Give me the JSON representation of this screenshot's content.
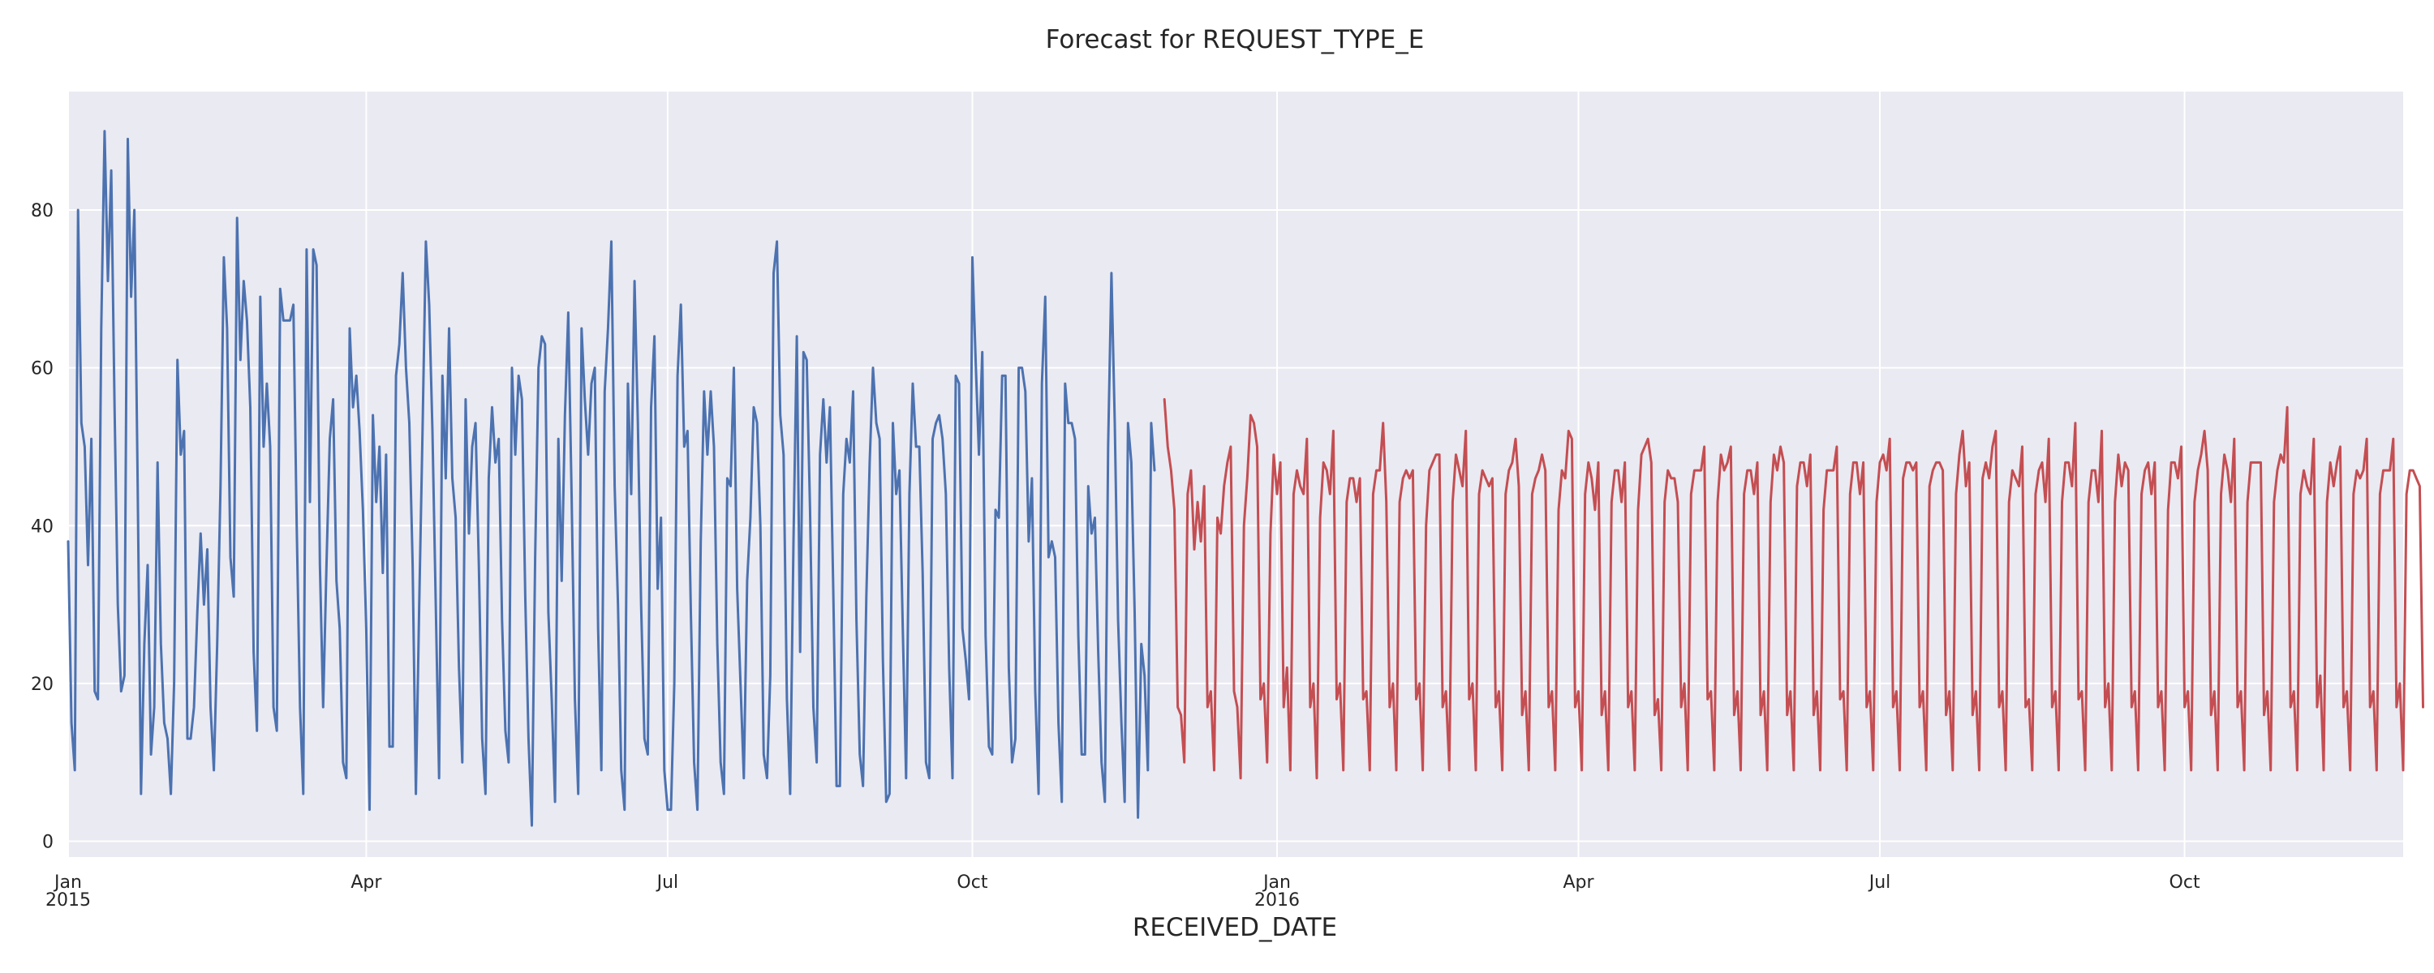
{
  "chart_data": {
    "type": "line",
    "title": "Forecast for REQUEST_TYPE_E",
    "xlabel": "RECEIVED_DATE",
    "ylabel": "",
    "x_range": [
      "2015-01-01",
      "2016-12-06"
    ],
    "ylim": [
      -2,
      95
    ],
    "yticks": [
      0,
      20,
      40,
      60,
      80
    ],
    "xticks": [
      {
        "date": "2015-01-01",
        "label": "Jan",
        "sublabel": "2015"
      },
      {
        "date": "2015-04-01",
        "label": "Apr",
        "sublabel": ""
      },
      {
        "date": "2015-07-01",
        "label": "Jul",
        "sublabel": ""
      },
      {
        "date": "2015-10-01",
        "label": "Oct",
        "sublabel": ""
      },
      {
        "date": "2016-01-01",
        "label": "Jan",
        "sublabel": "2016"
      },
      {
        "date": "2016-04-01",
        "label": "Apr",
        "sublabel": ""
      },
      {
        "date": "2016-07-01",
        "label": "Jul",
        "sublabel": ""
      },
      {
        "date": "2016-10-01",
        "label": "Oct",
        "sublabel": ""
      }
    ],
    "grid": true,
    "background": "#EAEAF2",
    "series": [
      {
        "color": "#4C72B0",
        "x_start": "2015-01-01",
        "x_step_days": 1,
        "values": [
          38,
          15,
          9,
          80,
          53,
          50,
          35,
          51,
          19,
          18,
          65,
          90,
          71,
          85,
          55,
          30,
          19,
          21,
          89,
          69,
          80,
          45,
          6,
          25,
          35,
          11,
          17,
          48,
          25,
          15,
          13,
          6,
          20,
          61,
          49,
          52,
          13,
          13,
          17,
          29,
          39,
          30,
          37,
          17,
          9,
          25,
          45,
          74,
          65,
          36,
          31,
          79,
          61,
          71,
          66,
          55,
          24,
          14,
          69,
          50,
          58,
          50,
          17,
          14,
          70,
          66,
          66,
          66,
          68,
          40,
          17,
          6,
          75,
          43,
          75,
          73,
          35,
          17,
          35,
          51,
          56,
          33,
          27,
          10,
          8,
          65,
          55,
          59,
          52,
          42,
          27,
          4,
          54,
          43,
          50,
          34,
          49,
          12,
          12,
          59,
          63,
          72,
          60,
          53,
          35,
          6,
          30,
          52,
          76,
          68,
          52,
          30,
          8,
          59,
          46,
          65,
          46,
          41,
          22,
          10,
          56,
          39,
          50,
          53,
          35,
          13,
          6,
          46,
          55,
          48,
          51,
          28,
          14,
          10,
          60,
          49,
          59,
          56,
          31,
          13,
          2,
          36,
          60,
          64,
          63,
          29,
          18,
          5,
          51,
          33,
          54,
          67,
          44,
          18,
          6,
          65,
          56,
          49,
          58,
          60,
          27,
          9,
          57,
          65,
          76,
          45,
          30,
          9,
          4,
          58,
          44,
          71,
          53,
          30,
          13,
          11,
          55,
          64,
          32,
          41,
          9,
          4,
          4,
          20,
          59,
          68,
          50,
          52,
          29,
          10,
          4,
          38,
          57,
          49,
          57,
          50,
          25,
          10,
          6,
          46,
          45,
          60,
          32,
          20,
          8,
          33,
          41,
          55,
          53,
          40,
          11,
          8,
          21,
          72,
          76,
          54,
          49,
          18,
          6,
          38,
          64,
          24,
          62,
          61,
          42,
          17,
          10,
          49,
          56,
          48,
          55,
          32,
          7,
          7,
          44,
          51,
          48,
          57,
          28,
          11,
          7,
          31,
          48,
          60,
          53,
          51,
          23,
          5,
          6,
          53,
          44,
          47,
          27,
          8,
          44,
          58,
          50,
          50,
          34,
          10,
          8,
          51,
          53,
          54,
          51,
          44,
          22,
          8,
          59,
          58,
          27,
          23,
          18,
          74,
          61,
          49,
          62,
          26,
          12,
          11,
          42,
          41,
          59,
          59,
          22,
          10,
          13,
          60,
          60,
          57,
          38,
          46,
          19,
          6,
          58,
          69,
          36,
          38,
          36,
          15,
          5,
          58,
          53,
          53,
          51,
          26,
          11,
          11,
          45,
          39,
          41,
          24,
          10,
          5,
          50,
          72,
          53,
          28,
          15,
          5,
          53,
          48,
          29,
          3,
          25,
          21,
          9,
          53,
          47
        ]
      },
      {
        "color": "#C44E52",
        "x_start": "2015-11-28",
        "x_step_days": 1,
        "values": [
          56,
          50,
          47,
          42,
          17,
          16,
          10,
          44,
          47,
          37,
          43,
          38,
          45,
          17,
          19,
          9,
          41,
          39,
          45,
          48,
          50,
          19,
          17,
          8,
          40,
          46,
          54,
          53,
          50,
          18,
          20,
          10,
          39,
          49,
          44,
          48,
          17,
          22,
          9,
          44,
          47,
          45,
          44,
          51,
          17,
          20,
          8,
          41,
          48,
          47,
          44,
          52,
          18,
          20,
          9,
          43,
          46,
          46,
          43,
          46,
          18,
          19,
          9,
          44,
          47,
          47,
          53,
          43,
          17,
          20,
          9,
          43,
          46,
          47,
          46,
          47,
          18,
          20,
          9,
          40,
          47,
          48,
          49,
          49,
          17,
          19,
          9,
          43,
          49,
          47,
          45,
          52,
          18,
          20,
          9,
          44,
          47,
          46,
          45,
          46,
          17,
          19,
          9,
          44,
          47,
          48,
          51,
          45,
          16,
          19,
          9,
          44,
          46,
          47,
          49,
          47,
          17,
          19,
          9,
          42,
          47,
          46,
          52,
          51,
          17,
          19,
          9,
          44,
          48,
          46,
          42,
          48,
          16,
          19,
          9,
          43,
          47,
          47,
          43,
          48,
          17,
          19,
          9,
          42,
          49,
          50,
          51,
          48,
          16,
          18,
          9,
          43,
          47,
          46,
          46,
          43,
          17,
          20,
          9,
          44,
          47,
          47,
          47,
          50,
          18,
          19,
          9,
          43,
          49,
          47,
          48,
          50,
          16,
          19,
          9,
          44,
          47,
          47,
          44,
          48,
          16,
          19,
          9,
          43,
          49,
          47,
          50,
          48,
          16,
          19,
          9,
          45,
          48,
          48,
          45,
          49,
          16,
          19,
          9,
          42,
          47,
          47,
          47,
          50,
          18,
          19,
          9,
          44,
          48,
          48,
          44,
          48,
          17,
          19,
          9,
          43,
          48,
          49,
          47,
          51,
          17,
          19,
          9,
          46,
          48,
          48,
          47,
          48,
          17,
          19,
          9,
          45,
          47,
          48,
          48,
          47,
          16,
          19,
          9,
          44,
          49,
          52,
          45,
          48,
          16,
          19,
          9,
          46,
          48,
          46,
          50,
          52,
          17,
          19,
          9,
          43,
          47,
          46,
          45,
          50,
          17,
          18,
          9,
          44,
          47,
          48,
          43,
          51,
          17,
          19,
          9,
          43,
          48,
          48,
          45,
          53,
          18,
          19,
          9,
          43,
          47,
          47,
          43,
          52,
          17,
          20,
          9,
          43,
          49,
          45,
          48,
          47,
          17,
          19,
          9,
          44,
          47,
          48,
          44,
          48,
          17,
          19,
          9,
          42,
          48,
          48,
          46,
          50,
          17,
          19,
          9,
          43,
          47,
          49,
          52,
          47,
          16,
          19,
          9,
          44,
          49,
          47,
          43,
          51,
          17,
          19,
          9,
          43,
          48,
          48,
          48,
          48,
          16,
          19,
          9,
          43,
          47,
          49,
          48,
          55,
          17,
          19,
          9,
          44,
          47,
          45,
          44,
          51,
          17,
          21,
          9,
          43,
          48,
          45,
          48,
          50,
          17,
          19,
          9,
          44,
          47,
          46,
          47,
          51,
          17,
          19,
          9,
          44,
          47,
          47,
          47,
          51,
          17,
          20,
          9,
          44,
          47,
          47,
          46,
          45,
          17
        ]
      }
    ]
  }
}
